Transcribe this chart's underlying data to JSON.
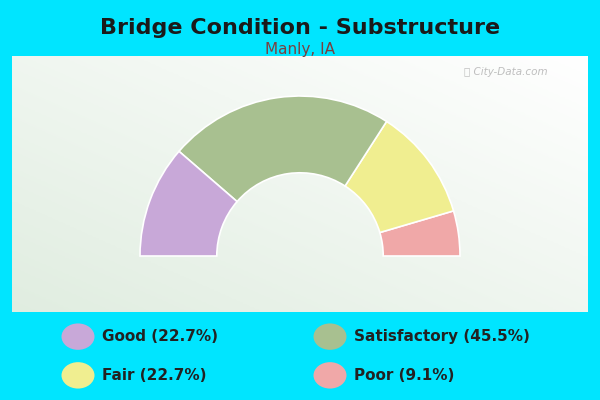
{
  "title": "Bridge Condition - Substructure",
  "subtitle": "Manly, IA",
  "bg_color": "#00e5ff",
  "chart_panel_color": "#e8f0e4",
  "categories": [
    "Good",
    "Satisfactory",
    "Fair",
    "Poor"
  ],
  "values": [
    22.7,
    45.5,
    22.7,
    9.1
  ],
  "colors": [
    "#c8a8d8",
    "#a8c090",
    "#f0ee90",
    "#f0a8a8"
  ],
  "legend_colors": [
    "#c8a8d8",
    "#a8c090",
    "#f0ee90",
    "#f0a8a8"
  ],
  "legend_labels_left": [
    "Good (22.7%)",
    "Fair (22.7%)"
  ],
  "legend_labels_right": [
    "Satisfactory (45.5%)",
    "Poor (9.1%)"
  ],
  "legend_colors_left": [
    "#c8a8d8",
    "#f0ee90"
  ],
  "legend_colors_right": [
    "#a8c090",
    "#f0a8a8"
  ],
  "title_fontsize": 16,
  "subtitle_fontsize": 11,
  "legend_fontsize": 11,
  "watermark": "Ⓜ City-Data.com",
  "outer_r": 1.0,
  "inner_r": 0.52
}
